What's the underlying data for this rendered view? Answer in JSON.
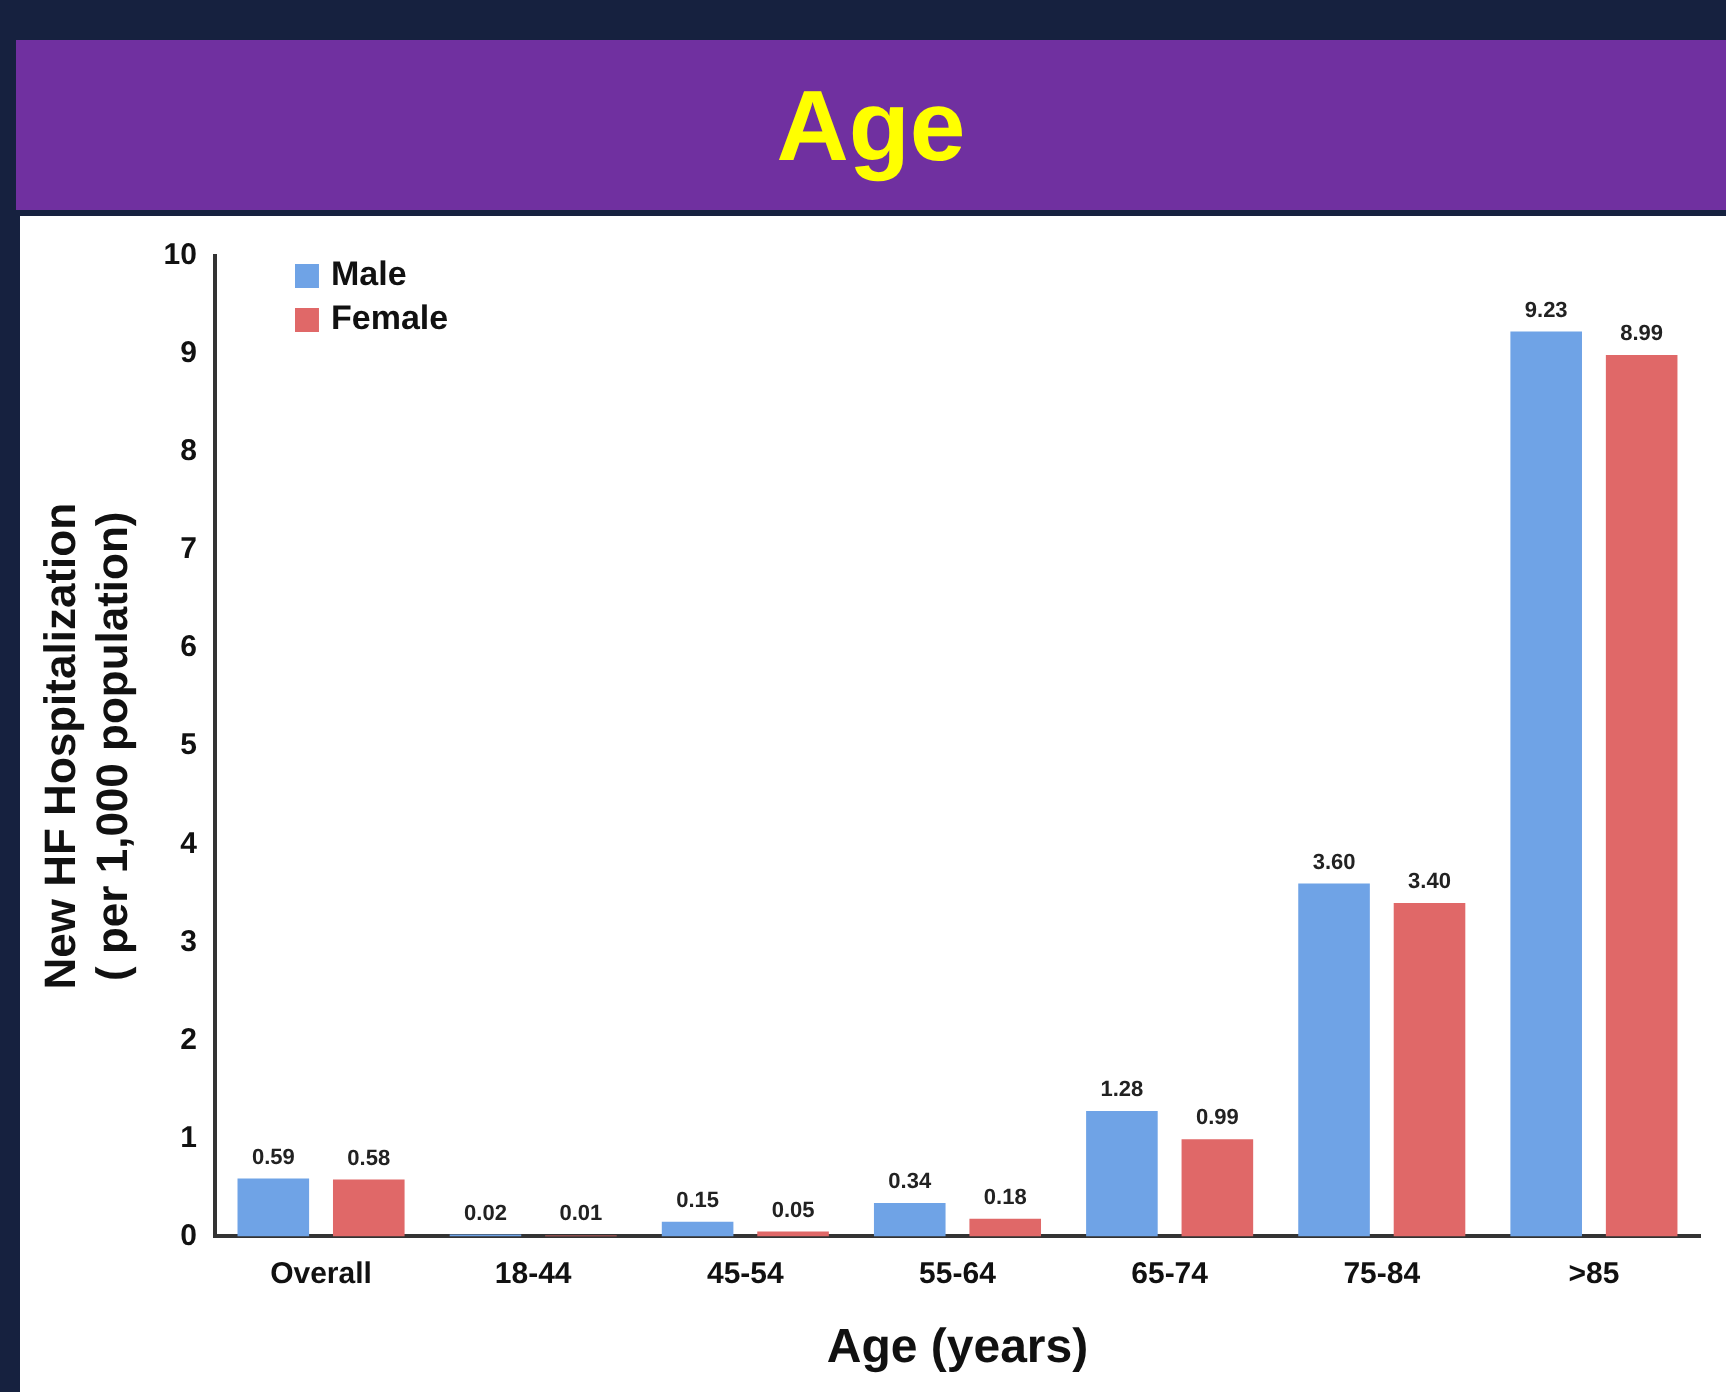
{
  "chart_data": {
    "type": "bar",
    "title": "Age",
    "xlabel": "Age (years)",
    "ylabel": "New HF Hospitalization\n( per 1,000 population)",
    "categories": [
      "Overall",
      "18-44",
      "45-54",
      "55-64",
      "65-74",
      "75-84",
      ">85"
    ],
    "series": [
      {
        "name": "Male",
        "color": "#6fa3e6",
        "values": [
          0.59,
          0.02,
          0.15,
          0.34,
          1.28,
          3.6,
          9.23
        ],
        "value_labels": [
          "0.59",
          "0.02",
          "0.15",
          "0.34",
          "1.28",
          "3.60",
          "9.23"
        ]
      },
      {
        "name": "Female",
        "color": "#e06868",
        "values": [
          0.58,
          0.01,
          0.05,
          0.18,
          0.99,
          3.4,
          8.99
        ],
        "value_labels": [
          "0.58",
          "0.01",
          "0.05",
          "0.18",
          "0.99",
          "3.40",
          "8.99"
        ]
      }
    ],
    "ylim": [
      0,
      10
    ],
    "yticks": [
      0,
      1,
      2,
      3,
      4,
      5,
      6,
      7,
      8,
      9,
      10
    ],
    "grid": false,
    "legend": "top left"
  }
}
